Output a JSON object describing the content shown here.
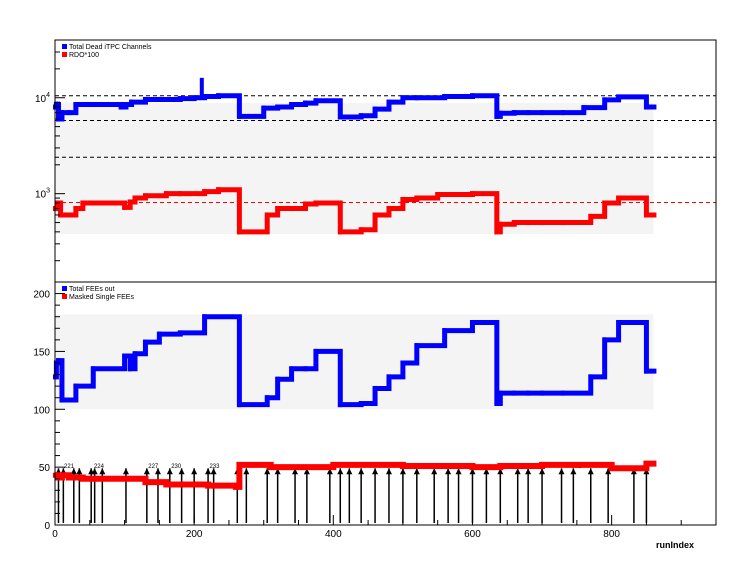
{
  "chart_data": [
    {
      "type": "line",
      "scale": "log",
      "legend_position": "top-left",
      "ylim": [
        120,
        40000
      ],
      "y_ticks": [
        {
          "value": 1000,
          "label_base": "10",
          "label_exp": "3"
        },
        {
          "value": 10000,
          "label_base": "10",
          "label_exp": "4"
        }
      ],
      "band": {
        "y0": 380,
        "y1": 8800
      },
      "reference_lines": [
        {
          "value": 10500,
          "color": "#000000"
        },
        {
          "value": 5800,
          "color": "#000000"
        },
        {
          "value": 2400,
          "color": "#000000"
        },
        {
          "value": 810,
          "color": "#ff0000"
        }
      ],
      "series": [
        {
          "name": "Total Dead iTPC Channels",
          "color": "#0000ff",
          "x": [
            0,
            2,
            5,
            10,
            20,
            30,
            55,
            95,
            102,
            110,
            130,
            150,
            180,
            200,
            215,
            235,
            265,
            300,
            320,
            340,
            360,
            375,
            410,
            440,
            460,
            480,
            500,
            520,
            560,
            600,
            635,
            640,
            660,
            680,
            700,
            730,
            760,
            790,
            810,
            850
          ],
          "values": [
            8000,
            8500,
            6000,
            7000,
            7000,
            8500,
            8500,
            8000,
            8500,
            9000,
            9600,
            9600,
            9800,
            10000,
            10300,
            10500,
            6400,
            7800,
            8000,
            8500,
            8800,
            9300,
            6300,
            6500,
            7600,
            9000,
            10000,
            10000,
            10300,
            10500,
            6400,
            6900,
            7000,
            7000,
            7000,
            7000,
            7900,
            9500,
            10200,
            8000
          ],
          "spike": {
            "x": 211,
            "value": 15000
          }
        },
        {
          "name": "RDO*100",
          "color": "#ff0000",
          "x": [
            0,
            3,
            8,
            15,
            30,
            40,
            50,
            100,
            108,
            115,
            130,
            160,
            180,
            215,
            235,
            265,
            305,
            320,
            340,
            360,
            375,
            410,
            440,
            460,
            480,
            500,
            520,
            550,
            600,
            635,
            640,
            660,
            680,
            700,
            730,
            770,
            790,
            810,
            850
          ],
          "values": [
            700,
            800,
            600,
            600,
            700,
            800,
            800,
            720,
            820,
            900,
            950,
            1000,
            1000,
            1050,
            1100,
            400,
            600,
            700,
            700,
            780,
            800,
            400,
            420,
            600,
            700,
            870,
            900,
            980,
            1000,
            400,
            480,
            500,
            500,
            500,
            500,
            580,
            800,
            900,
            600
          ]
        }
      ]
    },
    {
      "type": "line",
      "legend_position": "top-left",
      "ylim": [
        0,
        210
      ],
      "y_ticks": [
        0,
        50,
        100,
        150,
        200
      ],
      "xlim": [
        0,
        950
      ],
      "x_ticks": [
        0,
        200,
        400,
        600,
        800
      ],
      "xlabel": "runIndex",
      "band": {
        "y0": 100,
        "y1": 182
      },
      "series": [
        {
          "name": "Total FEEs out",
          "color": "#0000ff",
          "x": [
            0,
            2,
            5,
            10,
            30,
            55,
            100,
            108,
            115,
            130,
            150,
            180,
            215,
            265,
            305,
            320,
            340,
            360,
            375,
            410,
            440,
            460,
            480,
            500,
            520,
            560,
            600,
            635,
            640,
            660,
            680,
            700,
            730,
            770,
            790,
            810,
            850
          ],
          "values": [
            128,
            140,
            142,
            108,
            120,
            135,
            146,
            135,
            148,
            158,
            165,
            166,
            180,
            104,
            110,
            126,
            135,
            135,
            150,
            104,
            105,
            118,
            128,
            140,
            155,
            168,
            175,
            105,
            114,
            114,
            114,
            114,
            114,
            128,
            160,
            175,
            133
          ]
        },
        {
          "name": "Masked Single FEEs",
          "color": "#ff0000",
          "x": [
            0,
            5,
            10,
            20,
            40,
            60,
            100,
            130,
            160,
            190,
            220,
            240,
            260,
            265,
            310,
            320,
            360,
            400,
            430,
            460,
            500,
            560,
            600,
            640,
            700,
            760,
            800,
            820,
            850
          ],
          "values": [
            43,
            41,
            43,
            41,
            40,
            40,
            40,
            37,
            35,
            35,
            34,
            34,
            33,
            52,
            50,
            50,
            50,
            52,
            52,
            52,
            51,
            51,
            50,
            51,
            52,
            52,
            49,
            49,
            53
          ]
        }
      ],
      "run_markers": {
        "x": [
          5,
          12,
          27,
          35,
          52,
          57,
          68,
          102,
          132,
          148,
          165,
          182,
          200,
          220,
          228,
          262,
          275,
          305,
          320,
          345,
          362,
          395,
          410,
          423,
          440,
          460,
          480,
          500,
          520,
          545,
          565,
          580,
          600,
          620,
          640,
          665,
          680,
          700,
          728,
          745,
          770,
          795,
          832,
          850
        ],
        "labels": [
          {
            "x": 13,
            "text": "221"
          },
          {
            "x": 56,
            "text": "224"
          },
          {
            "x": 134,
            "text": "227"
          },
          {
            "x": 167,
            "text": "230"
          },
          {
            "x": 222,
            "text": "233"
          },
          {
            "x": 641,
            "text": "300"
          },
          {
            "x": 742,
            "text": "302"
          }
        ]
      }
    }
  ]
}
